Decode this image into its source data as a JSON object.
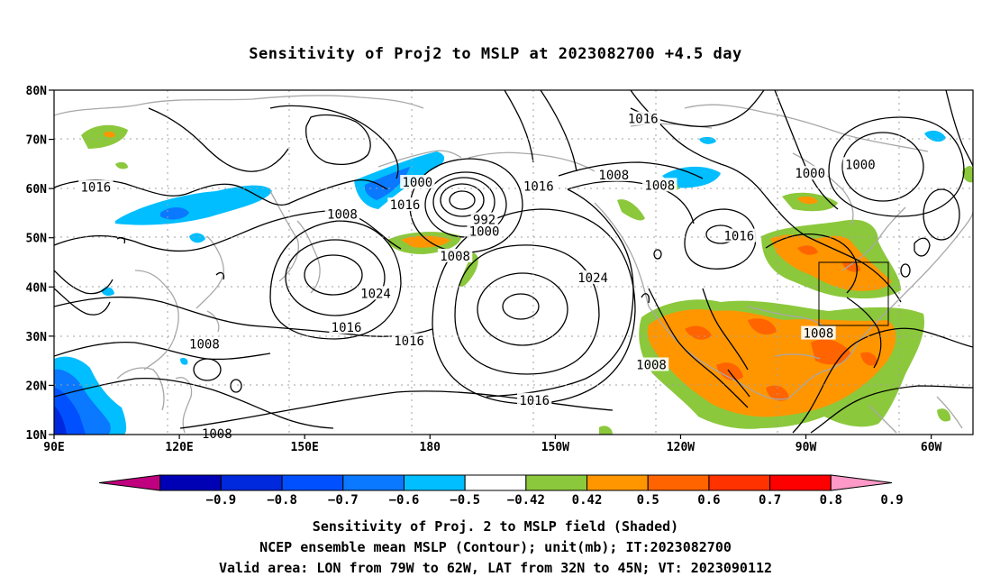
{
  "title": "Sensitivity of Proj2 to MSLP at 2023082700 +4.5 day",
  "map": {
    "lat_labels": [
      "80N",
      "70N",
      "60N",
      "50N",
      "40N",
      "30N",
      "20N",
      "10N"
    ],
    "lon_labels": [
      "90E",
      "120E",
      "150E",
      "180",
      "150W",
      "120W",
      "90W",
      "60W"
    ],
    "contour_labels": [
      {
        "text": "1016",
        "lon": 100,
        "lat": 60.3
      },
      {
        "text": "1000",
        "lon": 177,
        "lat": 61.3
      },
      {
        "text": "1016",
        "lon": 174,
        "lat": 56.7
      },
      {
        "text": "1008",
        "lon": 159,
        "lat": 54.8
      },
      {
        "text": "992",
        "lon": 193,
        "lat": 53.7
      },
      {
        "text": "1000",
        "lon": 193,
        "lat": 51.3
      },
      {
        "text": "1008",
        "lon": 186,
        "lat": 46.3
      },
      {
        "text": "1024",
        "lon": 167,
        "lat": 38.7
      },
      {
        "text": "1016",
        "lon": 160,
        "lat": 31.8
      },
      {
        "text": "1016",
        "lon": 175,
        "lat": 29.1
      },
      {
        "text": "1008",
        "lon": 126,
        "lat": 28.4
      },
      {
        "text": "1008",
        "lon": 129,
        "lat": 10.2
      },
      {
        "text": "1024",
        "lon": 219,
        "lat": 41.9
      },
      {
        "text": "1016",
        "lon": 206,
        "lat": 60.5
      },
      {
        "text": "1016",
        "lon": 205,
        "lat": 17.0
      },
      {
        "text": "1008",
        "lon": 224,
        "lat": 62.8
      },
      {
        "text": "1016",
        "lon": 231,
        "lat": 74.2
      },
      {
        "text": "1008",
        "lon": 235,
        "lat": 60.7
      },
      {
        "text": "1008",
        "lon": 233,
        "lat": 24.2
      },
      {
        "text": "1016",
        "lon": 254,
        "lat": 50.4
      },
      {
        "text": "1008",
        "lon": 273,
        "lat": 30.6
      },
      {
        "text": "1000",
        "lon": 271,
        "lat": 63.1
      },
      {
        "text": "1000",
        "lon": 283,
        "lat": 64.9
      }
    ]
  },
  "colorbar": {
    "labels": [
      "−0.9",
      "−0.8",
      "−0.7",
      "−0.6",
      "−0.5",
      "−0.42",
      "0.42",
      "0.5",
      "0.6",
      "0.7",
      "0.8",
      "0.9"
    ],
    "colors": [
      "#c0007f",
      "#0000b4",
      "#0028dc",
      "#0050ff",
      "#0a78ff",
      "#00beff",
      "#ffffff",
      "#8cc83c",
      "#ff9600",
      "#ff6400",
      "#ff3200",
      "#ff0000",
      "#ff9ac8"
    ]
  },
  "captions": [
    "Sensitivity of Proj. 2 to MSLP field (Shaded)",
    "NCEP ensemble mean MSLP (Contour); unit(mb); IT:2023082700",
    "Valid area: LON from 79W to 62W, LAT from 32N to 45N; VT: 2023090112"
  ]
}
